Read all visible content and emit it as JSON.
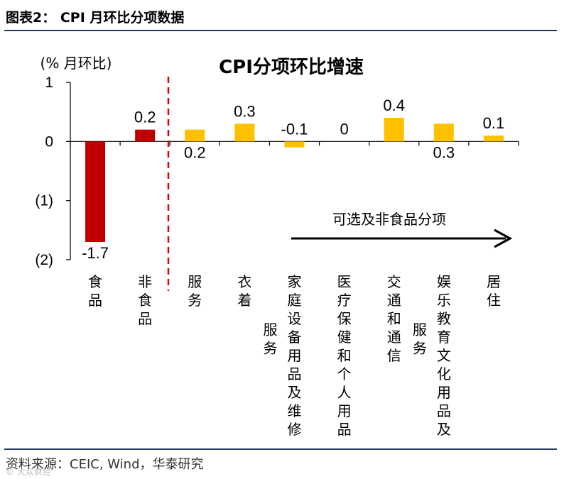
{
  "header": {
    "title": "图表2：  CPI 月环比分项数据"
  },
  "footer": {
    "source": "资料来源：CEIC, Wind，华泰研究",
    "watermark": "© 大众财经"
  },
  "chart_data": {
    "type": "bar",
    "title": "CPI分项环比增速",
    "ylabel": "(% 月环比)",
    "ylim": [
      -2,
      1
    ],
    "yticks": [
      1,
      0,
      -1,
      -2
    ],
    "ytick_labels": [
      "1",
      "0",
      "(1)",
      "(2)"
    ],
    "categories": [
      "食品",
      "非食品",
      "服务",
      "衣着",
      "家庭设备用品及维修服务",
      "医疗保健和个人用品",
      "交通和通信",
      "娱乐教育文化用品及服务",
      "居住"
    ],
    "category_columns": [
      [
        "食品"
      ],
      [
        "非食品"
      ],
      [
        "服务"
      ],
      [
        "衣着"
      ],
      [
        "服务",
        "家庭设备用品及维修"
      ],
      [
        "医疗保健和个人用品"
      ],
      [
        "交通和通信"
      ],
      [
        "服务",
        "娱乐教育文化用品及"
      ],
      [
        "居住"
      ]
    ],
    "values": [
      -1.7,
      0.2,
      0.2,
      0.3,
      -0.1,
      0,
      0.4,
      0.3,
      0.1
    ],
    "value_labels": [
      "-1.7",
      "0.2",
      "0.2",
      "0.3",
      "-0.1",
      "0",
      "0.4",
      "0.3",
      "0.1"
    ],
    "label_positions": [
      "below",
      "above",
      "below",
      "above",
      "above",
      "above",
      "above",
      "below",
      "above"
    ],
    "bar_colors": [
      "#c00000",
      "#c00000",
      "#ffc000",
      "#ffc000",
      "#ffc000",
      "#ffc000",
      "#ffc000",
      "#ffc000",
      "#ffc000"
    ],
    "annotation": "可选及非食品分项",
    "divider_color": "#e00000",
    "arrow_color": "#000000"
  }
}
